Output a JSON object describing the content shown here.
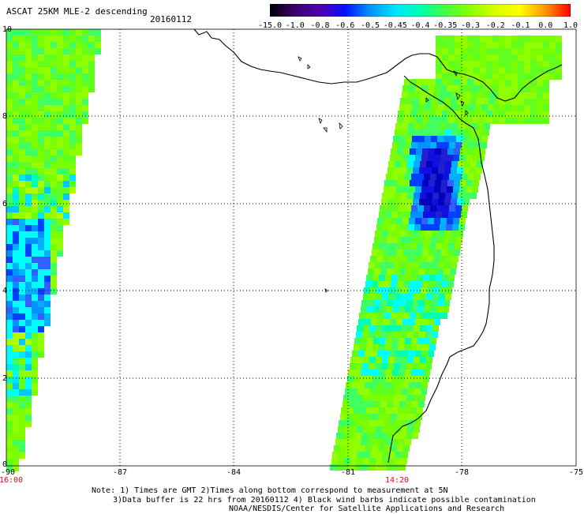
{
  "title": "ASCAT 25KM MLE-2 descending",
  "date": "20160112",
  "colorbar": {
    "labels": [
      "-15.0",
      "-1.0",
      "-0.8",
      "-0.6",
      "-0.5",
      "-0.45",
      "-0.4",
      "-0.35",
      "-0.3",
      "-0.2",
      "-0.1",
      "0.0",
      "1.0"
    ],
    "colors": [
      "#000000",
      "#4b0082",
      "#0000ff",
      "#1e90ff",
      "#00bfff",
      "#00ffff",
      "#00fa9a",
      "#32cd32",
      "#7cfc00",
      "#adff2f",
      "#ffff00",
      "#ff8c00",
      "#ff0000"
    ]
  },
  "axes": {
    "y_ticks": [
      "10",
      "8",
      "6",
      "4",
      "2",
      "0"
    ],
    "x_ticks": [
      "-90",
      "-87",
      "-84",
      "-81",
      "-78",
      "-75"
    ]
  },
  "times": {
    "left": "16:00",
    "right": "14:20"
  },
  "notes": [
    "Note: 1) Times are GMT 2)Times along bottom correspond to measurement at 5N",
    "3)Data buffer is 22 hrs from 20160112 4) Black wind barbs indicate possible contamination",
    "NOAA/NESDIS/Center for Satellite Applications and Research"
  ]
}
